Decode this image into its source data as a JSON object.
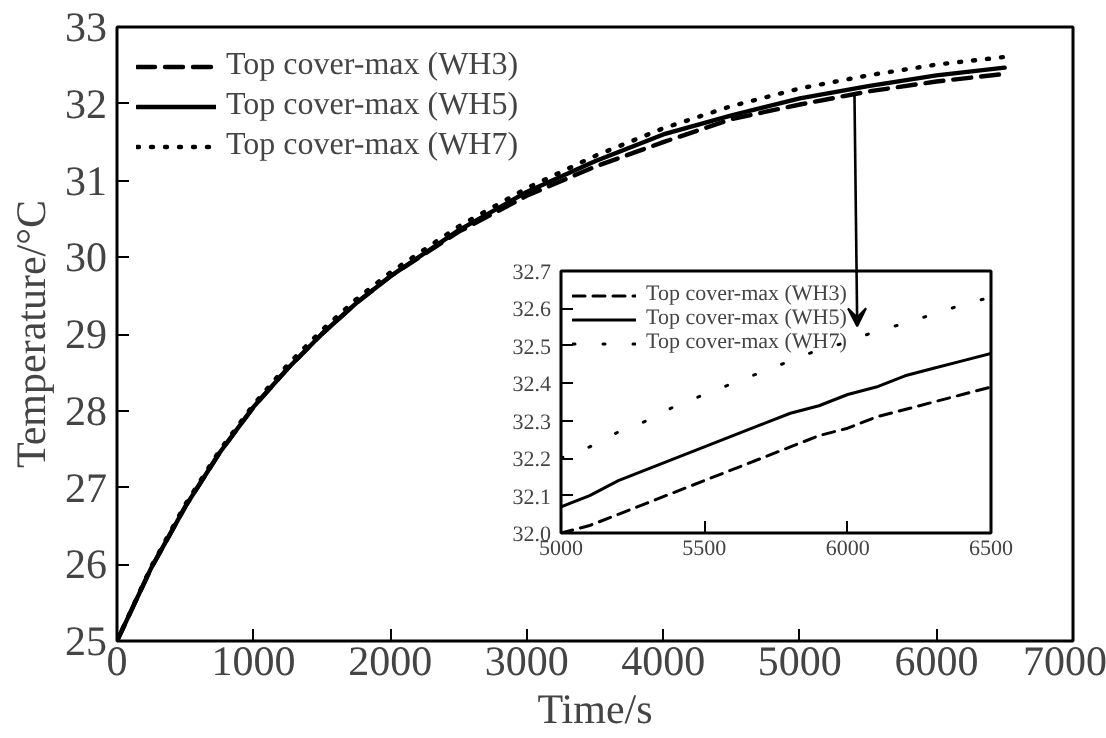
{
  "chart_data": [
    {
      "type": "line",
      "xlabel": "Time/s",
      "ylabel": "Temperature/°C",
      "x": [
        0,
        250,
        500,
        750,
        1000,
        1250,
        1500,
        1750,
        2000,
        2500,
        3000,
        3500,
        4000,
        4500,
        5000,
        5500,
        6000,
        6500
      ],
      "series": [
        {
          "name": "Top cover-max (WH3)",
          "color": "#000000",
          "line_style": "dashed",
          "values": [
            25,
            25.95,
            26.75,
            27.45,
            28.05,
            28.55,
            29.0,
            29.4,
            29.75,
            30.33,
            30.8,
            31.18,
            31.5,
            31.8,
            31.99,
            32.16,
            32.29,
            32.39
          ]
        },
        {
          "name": "Top cover-max (WH5)",
          "color": "#000000",
          "line_style": "solid",
          "values": [
            25,
            25.95,
            26.75,
            27.45,
            28.05,
            28.55,
            29.0,
            29.4,
            29.75,
            30.35,
            30.85,
            31.25,
            31.6,
            31.85,
            32.07,
            32.23,
            32.37,
            32.47
          ]
        },
        {
          "name": "Top cover-max (WH7)",
          "color": "#000000",
          "line_style": "dotted",
          "values": [
            25,
            25.97,
            26.78,
            27.48,
            28.08,
            28.6,
            29.05,
            29.45,
            29.8,
            30.4,
            30.9,
            31.32,
            31.68,
            31.97,
            32.2,
            32.37,
            32.51,
            32.61
          ]
        }
      ],
      "xlim": [
        0,
        7000
      ],
      "ylim": [
        25,
        33
      ],
      "xticks": [
        0,
        1000,
        2000,
        3000,
        4000,
        5000,
        6000,
        7000
      ],
      "yticks": [
        25,
        26,
        27,
        28,
        29,
        30,
        31,
        32,
        33
      ],
      "legend": "top left",
      "grid": false
    },
    {
      "type": "line",
      "x": [
        5000,
        5100,
        5200,
        5300,
        5400,
        5500,
        5600,
        5700,
        5800,
        5900,
        6000,
        6100,
        6200,
        6300,
        6400,
        6500
      ],
      "series": [
        {
          "name": "Top cover-max (WH3)",
          "color": "#000000",
          "line_style": "dashed",
          "values": [
            32.0,
            32.02,
            32.05,
            32.08,
            32.11,
            32.14,
            32.17,
            32.2,
            32.23,
            32.26,
            32.28,
            32.31,
            32.33,
            32.35,
            32.37,
            32.39
          ]
        },
        {
          "name": "Top cover-max (WH5)",
          "color": "#000000",
          "line_style": "solid",
          "values": [
            32.07,
            32.1,
            32.14,
            32.17,
            32.2,
            32.23,
            32.26,
            32.29,
            32.32,
            32.34,
            32.37,
            32.39,
            32.42,
            32.44,
            32.46,
            32.48
          ]
        },
        {
          "name": "Top cover-max (WH7)",
          "color": "#000000",
          "line_style": "dotted",
          "values": [
            32.2,
            32.23,
            32.27,
            32.3,
            32.34,
            32.37,
            32.4,
            32.43,
            32.46,
            32.49,
            32.51,
            32.54,
            32.56,
            32.585,
            32.61,
            32.63
          ]
        }
      ],
      "xlim": [
        5000,
        6500
      ],
      "ylim": [
        32.0,
        32.7
      ],
      "xticks": [
        5000,
        5500,
        6000,
        6500
      ],
      "yticks": [
        {
          "value": 32.0,
          "label": "32.0"
        },
        32.1,
        32.2,
        32.3,
        32.4,
        32.5,
        32.6,
        32.7
      ],
      "legend": "top left",
      "grid": false
    }
  ]
}
